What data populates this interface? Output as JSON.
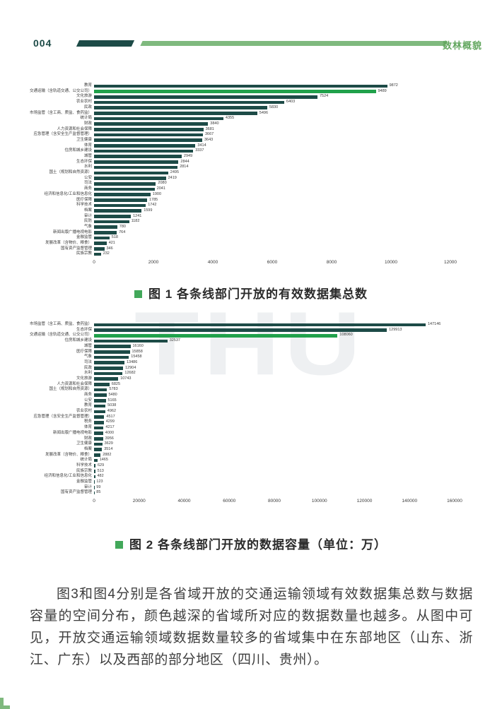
{
  "header": {
    "page_number": "004",
    "section_title": "数林概貌"
  },
  "colors": {
    "bar": "#1d4b47",
    "bar_highlight": "#21a14b",
    "header_dark": "#1d4b47",
    "header_green": "#7fb97e",
    "section_title_green": "#63a75f",
    "caption_bullet_green": "#42a85a",
    "body_text": "#3d3d3d"
  },
  "watermark": {
    "text": "THU"
  },
  "chart_data": [
    {
      "type": "bar",
      "orientation": "horizontal",
      "title": "图 1 各条线部门开放的有效数据集总数",
      "xlabel": "",
      "ylabel": "",
      "xlim": [
        0,
        12000
      ],
      "xticks": [
        0,
        2000,
        4000,
        6000,
        8000,
        10000,
        12000
      ],
      "grid": false,
      "legend": false,
      "highlight_index": 1,
      "highlight_category": "交通运输（含轨道交通、公交公司）",
      "categories": [
        "教育",
        "交通运输（含轨道交通、公交公司）",
        "文化旅游",
        "农业农村",
        "民政",
        "市场监管（含工商、质监、食药监）",
        "统计局",
        "财政",
        "人力资源和社会保障",
        "应急管理（含安全生产监督管理）",
        "卫生健康",
        "体育",
        "住房和城乡建设",
        "城管",
        "生态环保",
        "水利",
        "国土（规划和自然资源）",
        "公安",
        "司法",
        "商务",
        "经济和信息化/工业和信息化",
        "医疗保障",
        "科学技术",
        "档案",
        "审计",
        "民防",
        "气象",
        "新闻出版广播电视电影",
        "金融监管",
        "发展改革（含物价、粮食）",
        "国有资产监督管理",
        "民族宗教"
      ],
      "values": [
        9872,
        9489,
        7524,
        6403,
        5830,
        5496,
        4355,
        3840,
        3681,
        3667,
        3643,
        3414,
        3337,
        2949,
        2844,
        2814,
        2495,
        2419,
        2080,
        2041,
        1900,
        1785,
        1742,
        1599,
        1241,
        1182,
        780,
        764,
        518,
        421,
        346,
        232
      ]
    },
    {
      "type": "bar",
      "orientation": "horizontal",
      "title": "图 2 各条线部门开放的数据容量（单位：万）",
      "xlabel": "",
      "ylabel": "",
      "xlim": [
        0,
        160000
      ],
      "xticks": [
        0,
        20000,
        40000,
        60000,
        80000,
        100000,
        120000,
        140000,
        160000
      ],
      "grid": false,
      "legend": false,
      "highlight_index": 2,
      "highlight_category": "交通运输（含轨道交通、公交公司）",
      "categories": [
        "市场监管（含工商、质监、食药监）",
        "生态环保",
        "交通运输（含轨道交通、公交公司）",
        "住房和城乡建设",
        "城管",
        "医疗保障",
        "气象",
        "司法",
        "民政",
        "水利",
        "文化旅游",
        "人力资源和社会保障",
        "国土（规划和自然资源）",
        "商务",
        "公安",
        "教育",
        "农业农村",
        "应急管理（含安全生产监督管理）",
        "税务",
        "体育",
        "新闻出版广播电视电影",
        "财政",
        "卫生健康",
        "档案",
        "发展改革（含物价、粮食）",
        "统计局",
        "科学技术",
        "民族宗教",
        "经济和信息化/工业和信息化",
        "金融监管",
        "审计",
        "国有资产监督管理"
      ],
      "values": [
        147146,
        129913,
        108060,
        32537,
        16160,
        15858,
        15458,
        13486,
        12904,
        12682,
        10743,
        6825,
        5783,
        5480,
        5165,
        5038,
        4962,
        4517,
        4299,
        4217,
        4000,
        3956,
        3629,
        3514,
        2882,
        1465,
        629,
        513,
        482,
        123,
        99,
        85
      ]
    }
  ],
  "paragraph": {
    "text": "图3和图4分别是各省域开放的交通运输领域有效数据集总数与数据容量的空间分布，颜色越深的省域所对应的数据数量也越多。从图中可见，开放交通运输领域数据数量较多的省域集中在东部地区（山东、浙江、广东）以及西部的部分地区（四川、贵州）。"
  }
}
